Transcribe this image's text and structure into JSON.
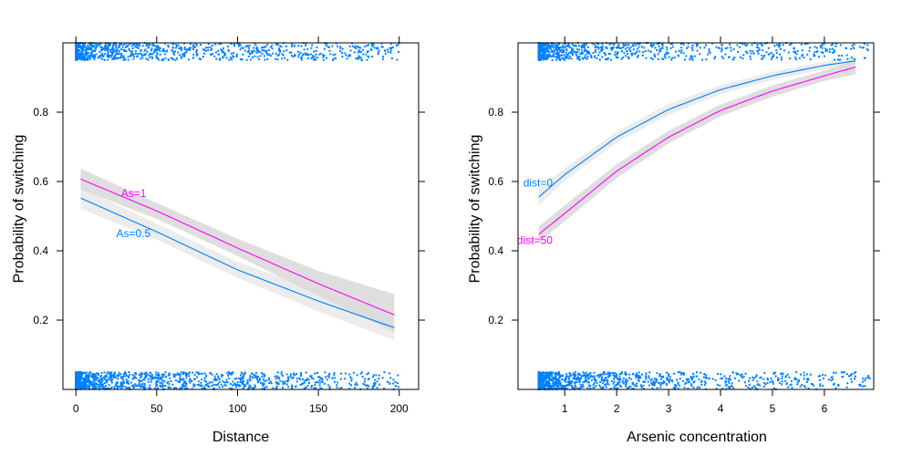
{
  "colors": {
    "series_a": "#0080ff",
    "series_b": "#ff00ff",
    "band_outer": "#ececec",
    "band_inner": "#dadada",
    "rug": "#0080ff",
    "frame": "#000000"
  },
  "chart_data": [
    {
      "type": "line",
      "xlabel": "Distance",
      "ylabel": "Probability of switching",
      "xlim": [
        -8,
        212
      ],
      "ylim": [
        0,
        1
      ],
      "xticks": [
        0,
        50,
        100,
        150,
        200
      ],
      "yticks": [
        0.2,
        0.4,
        0.6,
        0.8
      ],
      "grid": false,
      "legend": "labels on curves",
      "series": [
        {
          "name": "As=0.5",
          "color": "#0080ff",
          "x": [
            3,
            50,
            100,
            150,
            197
          ],
          "y": [
            0.552,
            0.455,
            0.345,
            0.255,
            0.178
          ],
          "lower": [
            0.522,
            0.432,
            0.322,
            0.225,
            0.142
          ],
          "upper": [
            0.582,
            0.478,
            0.368,
            0.285,
            0.222
          ],
          "label_at": [
            25,
            0.44
          ]
        },
        {
          "name": "As=1",
          "color": "#ff00ff",
          "x": [
            3,
            50,
            100,
            150,
            197
          ],
          "y": [
            0.607,
            0.515,
            0.408,
            0.305,
            0.215
          ],
          "lower": [
            0.577,
            0.492,
            0.385,
            0.27,
            0.165
          ],
          "upper": [
            0.637,
            0.538,
            0.435,
            0.342,
            0.275
          ],
          "label_at": [
            28,
            0.555
          ]
        }
      ],
      "rug": {
        "x_min": 0,
        "x_max": 200,
        "skew": 2.4
      }
    },
    {
      "type": "line",
      "xlabel": "Arsenic concentration",
      "ylabel": "Probability of switching",
      "xlim": [
        0.1,
        6.95
      ],
      "ylim": [
        0,
        1
      ],
      "xticks": [
        1,
        2,
        3,
        4,
        5,
        6
      ],
      "yticks": [
        0.2,
        0.4,
        0.6,
        0.8
      ],
      "grid": false,
      "legend": "labels on curves",
      "series": [
        {
          "name": "dist=0",
          "color": "#0080ff",
          "x": [
            0.5,
            1,
            2,
            3,
            4,
            5,
            6,
            6.6
          ],
          "y": [
            0.555,
            0.62,
            0.728,
            0.808,
            0.865,
            0.905,
            0.935,
            0.948
          ],
          "lower": [
            0.53,
            0.602,
            0.712,
            0.792,
            0.852,
            0.893,
            0.924,
            0.938
          ],
          "upper": [
            0.58,
            0.638,
            0.744,
            0.824,
            0.878,
            0.917,
            0.946,
            0.958
          ],
          "label_at": [
            0.2,
            0.585
          ]
        },
        {
          "name": "dist=50",
          "color": "#ff00ff",
          "x": [
            0.5,
            1,
            2,
            3,
            4,
            5,
            6,
            6.6
          ],
          "y": [
            0.448,
            0.508,
            0.63,
            0.728,
            0.805,
            0.861,
            0.905,
            0.93
          ],
          "lower": [
            0.425,
            0.485,
            0.61,
            0.71,
            0.788,
            0.845,
            0.89,
            0.91
          ],
          "upper": [
            0.471,
            0.531,
            0.65,
            0.746,
            0.822,
            0.877,
            0.92,
            0.95
          ],
          "label_at": [
            0.08,
            0.42
          ]
        }
      ],
      "rug": {
        "x_min": 0.5,
        "x_max": 6.9,
        "skew": 3.2
      }
    }
  ]
}
